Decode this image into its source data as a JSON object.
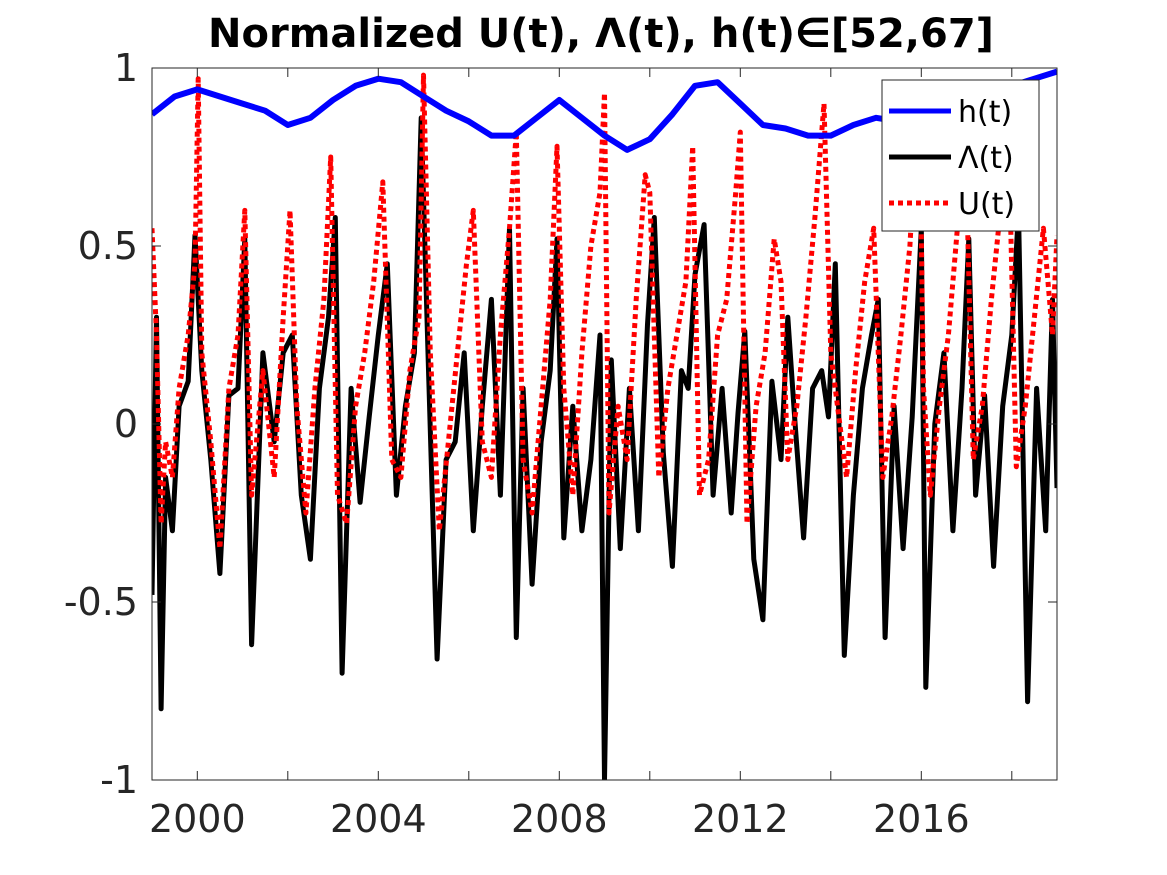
{
  "chart_data": {
    "type": "line",
    "title": "Normalized U(t), Λ(t), h(t)∈[52,67]",
    "xlabel": "",
    "ylabel": "",
    "xlim": [
      1999.0,
      2019.0
    ],
    "ylim": [
      -1,
      1
    ],
    "xticks": [
      2000,
      2004,
      2008,
      2012,
      2016
    ],
    "xticks_minor": [
      2002,
      2006,
      2010,
      2014,
      2018
    ],
    "yticks": [
      -1,
      -0.5,
      0,
      0.5,
      1
    ],
    "ytick_labels": [
      "-1",
      "-0.5",
      "0",
      "0.5",
      "1"
    ],
    "grid": false,
    "legend_position": "top-right",
    "colors": {
      "h": "#0000ff",
      "lambda": "#000000",
      "u": "#ff0000"
    },
    "series": [
      {
        "key": "h",
        "name": "h(t)",
        "style": "solid",
        "x": [
          1999.0,
          1999.5,
          2000.0,
          2000.5,
          2001.0,
          2001.5,
          2002.0,
          2002.5,
          2003.0,
          2003.5,
          2004.0,
          2004.5,
          2005.0,
          2005.5,
          2006.0,
          2006.5,
          2007.0,
          2007.5,
          2008.0,
          2008.5,
          2009.0,
          2009.5,
          2010.0,
          2010.5,
          2011.0,
          2011.5,
          2012.0,
          2012.5,
          2013.0,
          2013.5,
          2014.0,
          2014.5,
          2015.0,
          2015.5,
          2016.0,
          2016.5,
          2017.0,
          2017.5,
          2018.0,
          2018.5,
          2019.0
        ],
        "y": [
          0.87,
          0.92,
          0.94,
          0.92,
          0.9,
          0.88,
          0.84,
          0.86,
          0.91,
          0.95,
          0.97,
          0.96,
          0.92,
          0.88,
          0.85,
          0.81,
          0.81,
          0.86,
          0.91,
          0.86,
          0.81,
          0.77,
          0.8,
          0.87,
          0.95,
          0.96,
          0.9,
          0.84,
          0.83,
          0.81,
          0.81,
          0.84,
          0.86,
          0.85,
          0.84,
          0.86,
          0.89,
          0.93,
          0.95,
          0.97,
          0.99
        ]
      },
      {
        "key": "lambda",
        "name": "Λ(t)",
        "style": "solid",
        "x": [
          1999.0,
          1999.1,
          1999.2,
          1999.3,
          1999.45,
          1999.6,
          1999.8,
          1999.95,
          2000.1,
          2000.3,
          2000.5,
          2000.7,
          2000.9,
          2001.05,
          2001.2,
          2001.45,
          2001.7,
          2001.9,
          2002.1,
          2002.3,
          2002.5,
          2002.7,
          2002.9,
          2003.05,
          2003.2,
          2003.4,
          2003.6,
          2003.8,
          2004.0,
          2004.2,
          2004.4,
          2004.6,
          2004.8,
          2004.95,
          2005.1,
          2005.3,
          2005.5,
          2005.7,
          2005.9,
          2006.1,
          2006.3,
          2006.5,
          2006.7,
          2006.9,
          2007.05,
          2007.2,
          2007.4,
          2007.6,
          2007.8,
          2007.95,
          2008.1,
          2008.3,
          2008.5,
          2008.7,
          2008.9,
          2009.0,
          2009.15,
          2009.35,
          2009.55,
          2009.75,
          2009.95,
          2010.1,
          2010.3,
          2010.5,
          2010.7,
          2010.85,
          2011.0,
          2011.2,
          2011.4,
          2011.6,
          2011.8,
          2011.95,
          2012.1,
          2012.3,
          2012.5,
          2012.7,
          2012.9,
          2013.05,
          2013.2,
          2013.4,
          2013.6,
          2013.8,
          2013.95,
          2014.1,
          2014.3,
          2014.5,
          2014.7,
          2014.9,
          2015.05,
          2015.2,
          2015.4,
          2015.6,
          2015.8,
          2016.0,
          2016.1,
          2016.3,
          2016.5,
          2016.7,
          2016.9,
          2017.05,
          2017.2,
          2017.4,
          2017.6,
          2017.8,
          2018.0,
          2018.15,
          2018.35,
          2018.55,
          2018.75,
          2018.9,
          2019.0
        ],
        "y": [
          -0.48,
          0.3,
          -0.8,
          -0.15,
          -0.3,
          0.05,
          0.12,
          0.53,
          0.15,
          -0.1,
          -0.42,
          0.08,
          0.1,
          0.52,
          -0.62,
          0.2,
          -0.05,
          0.2,
          0.25,
          -0.2,
          -0.38,
          0.1,
          0.3,
          0.58,
          -0.7,
          0.1,
          -0.22,
          0.02,
          0.25,
          0.45,
          -0.2,
          0.05,
          0.2,
          0.86,
          0.2,
          -0.66,
          -0.1,
          -0.05,
          0.2,
          -0.3,
          0.05,
          0.35,
          -0.2,
          0.55,
          -0.6,
          0.1,
          -0.45,
          -0.05,
          0.15,
          0.52,
          -0.32,
          0.05,
          -0.3,
          -0.1,
          0.25,
          -1.0,
          0.18,
          -0.35,
          0.1,
          -0.3,
          0.28,
          0.58,
          -0.08,
          -0.4,
          0.15,
          0.1,
          0.42,
          0.56,
          -0.2,
          0.1,
          -0.25,
          0.03,
          0.26,
          -0.38,
          -0.55,
          0.12,
          -0.1,
          0.3,
          0.02,
          -0.32,
          0.1,
          0.15,
          0.02,
          0.45,
          -0.65,
          -0.2,
          0.1,
          0.25,
          0.35,
          -0.6,
          0.05,
          -0.35,
          0.02,
          0.55,
          -0.74,
          0.0,
          0.2,
          -0.3,
          0.1,
          0.52,
          -0.2,
          0.08,
          -0.4,
          0.05,
          0.25,
          0.6,
          -0.78,
          0.1,
          -0.3,
          0.35,
          -0.18
        ]
      },
      {
        "key": "u",
        "name": "U(t)",
        "style": "dotted",
        "x": [
          1999.0,
          1999.1,
          1999.2,
          1999.3,
          1999.45,
          1999.6,
          1999.8,
          1999.95,
          2000.02,
          2000.1,
          2000.3,
          2000.5,
          2000.7,
          2000.9,
          2001.05,
          2001.2,
          2001.45,
          2001.7,
          2001.9,
          2002.05,
          2002.2,
          2002.4,
          2002.6,
          2002.8,
          2002.95,
          2003.1,
          2003.3,
          2003.5,
          2003.7,
          2003.9,
          2004.1,
          2004.3,
          2004.5,
          2004.7,
          2004.9,
          2005.0,
          2005.15,
          2005.35,
          2005.55,
          2005.75,
          2005.95,
          2006.1,
          2006.3,
          2006.5,
          2006.7,
          2006.9,
          2007.05,
          2007.2,
          2007.4,
          2007.6,
          2007.8,
          2007.95,
          2008.1,
          2008.3,
          2008.5,
          2008.7,
          2008.9,
          2009.0,
          2009.1,
          2009.3,
          2009.5,
          2009.7,
          2009.9,
          2010.0,
          2010.2,
          2010.4,
          2010.6,
          2010.8,
          2010.95,
          2011.1,
          2011.3,
          2011.5,
          2011.7,
          2011.9,
          2012.0,
          2012.15,
          2012.35,
          2012.55,
          2012.75,
          2012.9,
          2013.05,
          2013.25,
          2013.45,
          2013.65,
          2013.85,
          2014.0,
          2014.15,
          2014.35,
          2014.55,
          2014.75,
          2014.95,
          2015.15,
          2015.35,
          2015.55,
          2015.75,
          2015.95,
          2016.05,
          2016.2,
          2016.4,
          2016.6,
          2016.8,
          2017.0,
          2017.15,
          2017.35,
          2017.55,
          2017.75,
          2017.95,
          2018.1,
          2018.3,
          2018.5,
          2018.7,
          2018.9,
          2019.0
        ],
        "y": [
          0.55,
          0.25,
          -0.28,
          -0.05,
          -0.15,
          0.1,
          0.25,
          0.45,
          0.97,
          0.2,
          -0.05,
          -0.35,
          0.1,
          0.25,
          0.6,
          -0.2,
          0.15,
          -0.15,
          0.3,
          0.6,
          0.05,
          -0.25,
          0.1,
          0.35,
          0.75,
          -0.2,
          -0.28,
          0.05,
          0.2,
          0.4,
          0.68,
          -0.1,
          -0.15,
          0.15,
          0.3,
          0.98,
          0.2,
          -0.3,
          -0.05,
          0.2,
          0.45,
          0.6,
          -0.05,
          -0.15,
          0.25,
          0.55,
          0.82,
          -0.1,
          -0.25,
          0.05,
          0.35,
          0.78,
          0.1,
          -0.2,
          0.2,
          0.5,
          0.65,
          0.93,
          -0.25,
          0.05,
          -0.1,
          0.35,
          0.7,
          0.65,
          -0.15,
          0.1,
          0.25,
          0.4,
          0.78,
          -0.2,
          -0.1,
          0.25,
          0.35,
          0.65,
          0.82,
          -0.28,
          0.05,
          0.2,
          0.52,
          0.4,
          -0.1,
          0.05,
          0.3,
          0.58,
          0.9,
          0.2,
          0.05,
          -0.15,
          0.15,
          0.4,
          0.55,
          -0.15,
          0.02,
          0.25,
          0.5,
          0.97,
          0.1,
          -0.2,
          0.05,
          0.25,
          0.55,
          0.68,
          -0.1,
          0.05,
          0.35,
          0.6,
          0.7,
          -0.12,
          0.05,
          0.3,
          0.55,
          0.25,
          0.53
        ]
      }
    ]
  }
}
